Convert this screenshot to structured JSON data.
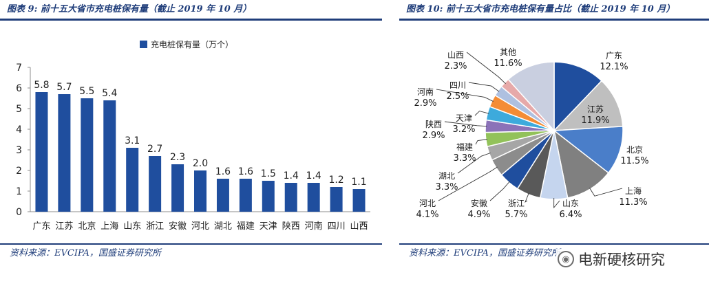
{
  "left": {
    "title": "图表 9: 前十五大省市充电桩保有量（截止 2019 年 10 月）",
    "source": "资料来源：EVCIPA，国盛证券研究所"
  },
  "right": {
    "title": "图表 10: 前十五大省市充电桩保有量占比（截止 2019 年 10 月）",
    "source": "资料来源：EVCIPA，国盛证券研究所"
  },
  "watermark": {
    "text": "电新硬核研究",
    "icon": "wechat-icon"
  },
  "colors": {
    "accent": "#1f3d7a",
    "bar": "#1f4e9e"
  },
  "chart_data": [
    {
      "type": "bar",
      "title": "",
      "legend": "top",
      "series": [
        {
          "name": "充电桩保有量（万个）",
          "values": [
            5.8,
            5.7,
            5.5,
            5.4,
            3.1,
            2.7,
            2.3,
            2.0,
            1.6,
            1.6,
            1.5,
            1.4,
            1.4,
            1.2,
            1.1
          ]
        }
      ],
      "categories": [
        "广东",
        "江苏",
        "北京",
        "上海",
        "山东",
        "浙江",
        "安徽",
        "河北",
        "湖北",
        "福建",
        "天津",
        "陕西",
        "河南",
        "四川",
        "山西"
      ],
      "value_labels": [
        "5.8",
        "5.7",
        "5.5",
        "5.4",
        "3.1",
        "2.7",
        "2.3",
        "2.0",
        "1.6",
        "1.6",
        "1.5",
        "1.4",
        "1.4",
        "1.2",
        "1.1"
      ],
      "y_ticks": [
        "0",
        "1",
        "2",
        "3",
        "4",
        "5",
        "6",
        "7"
      ],
      "ylim": [
        0,
        7
      ],
      "grid": false
    },
    {
      "type": "pie",
      "title": "",
      "labels": [
        "广东",
        "江苏",
        "北京",
        "上海",
        "山东",
        "浙江",
        "安徽",
        "河北",
        "湖北",
        "福建",
        "陕西",
        "天津",
        "河南",
        "四川",
        "山西",
        "其他"
      ],
      "values": [
        12.1,
        11.9,
        11.5,
        11.3,
        6.4,
        5.7,
        4.9,
        4.1,
        3.3,
        3.3,
        2.9,
        3.2,
        2.9,
        2.5,
        2.3,
        11.6
      ],
      "value_labels": [
        "12.1%",
        "11.9%",
        "11.5%",
        "11.3%",
        "6.4%",
        "5.7%",
        "4.9%",
        "4.1%",
        "3.3%",
        "3.3%",
        "2.9%",
        "3.2%",
        "2.9%",
        "2.5%",
        "2.3%",
        "11.6%"
      ],
      "colors": [
        "#1f4e9e",
        "#bfbfbf",
        "#4a7ec9",
        "#808080",
        "#c5d5ee",
        "#595959",
        "#1f4e9e",
        "#8c8c8c",
        "#a6a6a6",
        "#92c25a",
        "#8b72b8",
        "#3daadc",
        "#f48c35",
        "#aec0e0",
        "#e6a9a9",
        "#c9cfe0"
      ],
      "legend": "none"
    }
  ]
}
